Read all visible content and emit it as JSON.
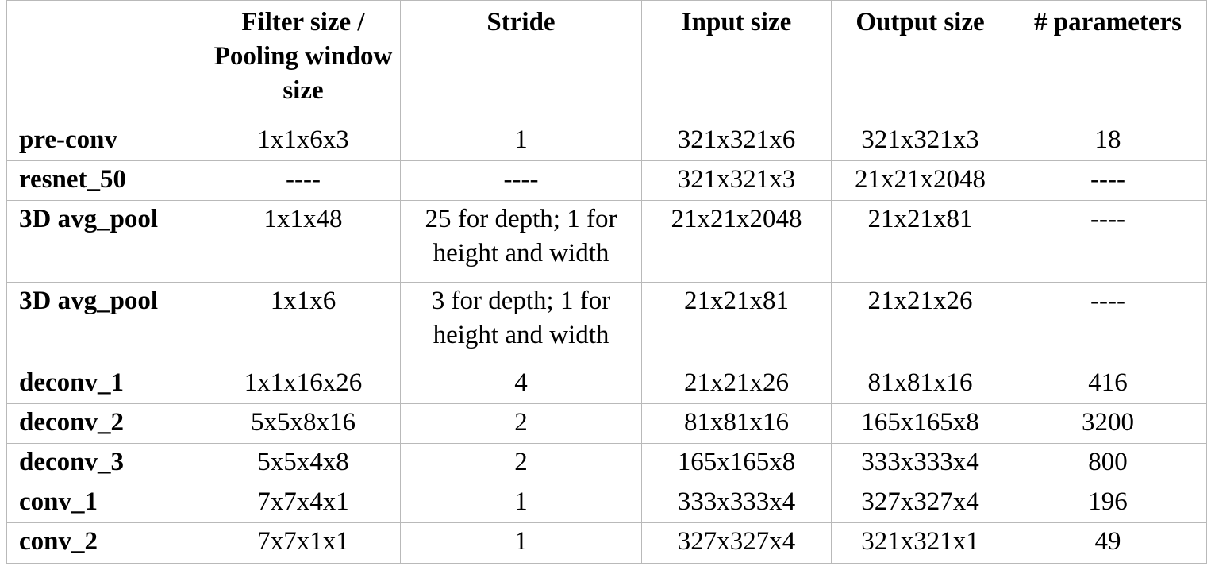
{
  "table": {
    "headers": [
      "",
      "Filter size / Pooling window size",
      "Stride",
      "Input size",
      "Output size",
      "# parameters"
    ],
    "rows": [
      [
        "pre-conv",
        "1x1x6x3",
        "1",
        "321x321x6",
        "321x321x3",
        "18"
      ],
      [
        "resnet_50",
        "----",
        "----",
        "321x321x3",
        "21x21x2048",
        "----"
      ],
      [
        "3D avg_pool",
        "1x1x48",
        "25 for depth; 1 for height and width",
        "21x21x2048",
        "21x21x81",
        "----"
      ],
      [
        "3D avg_pool",
        "1x1x6",
        "3 for depth; 1 for height and width",
        "21x21x81",
        "21x21x26",
        "----"
      ],
      [
        "deconv_1",
        "1x1x16x26",
        "4",
        "21x21x26",
        "81x81x16",
        "416"
      ],
      [
        "deconv_2",
        "5x5x8x16",
        "2",
        "81x81x16",
        "165x165x8",
        "3200"
      ],
      [
        "deconv_3",
        "5x5x4x8",
        "2",
        "165x165x8",
        "333x333x4",
        "800"
      ],
      [
        "conv_1",
        "7x7x4x1",
        "1",
        "333x333x4",
        "327x327x4",
        "196"
      ],
      [
        "conv_2",
        "7x7x1x1",
        "1",
        "327x327x4",
        "321x321x1",
        "49"
      ]
    ]
  }
}
